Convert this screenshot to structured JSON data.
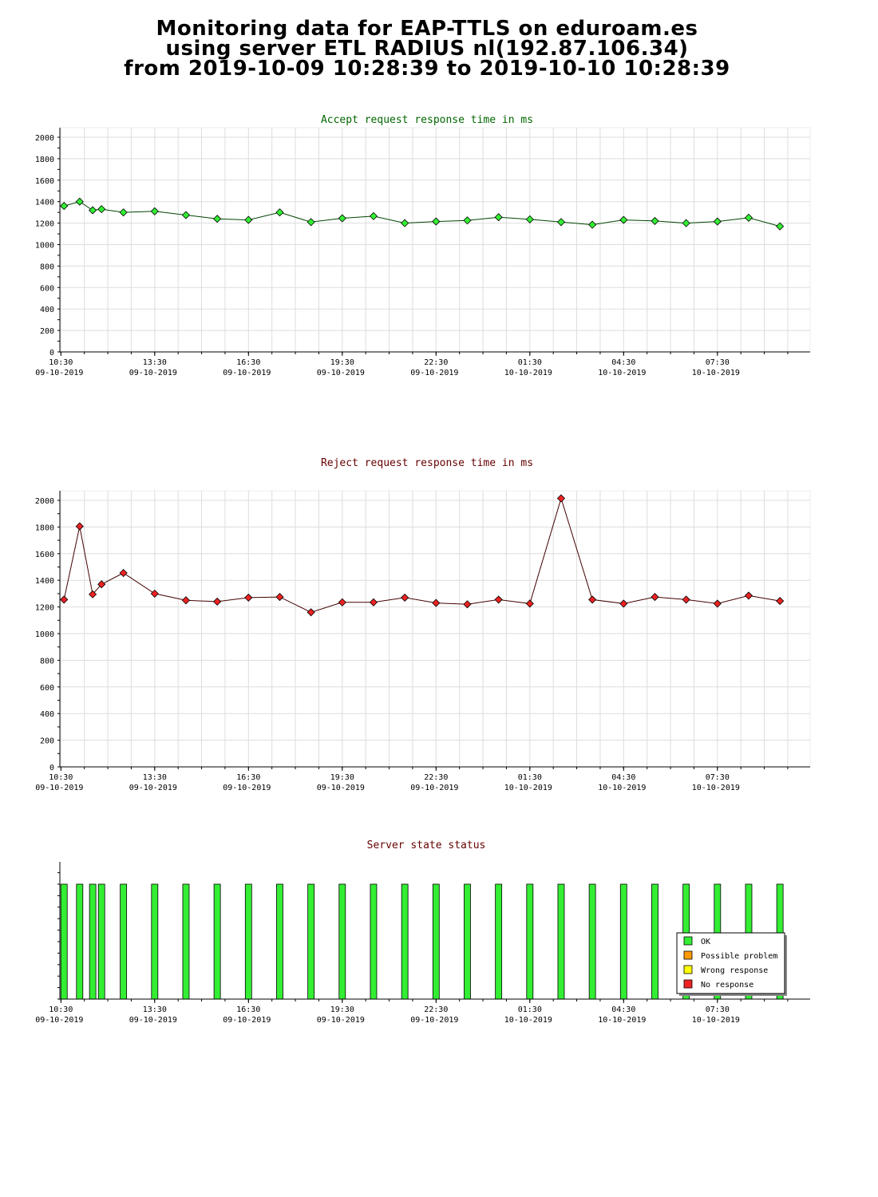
{
  "title": {
    "line1": "Monitoring data for EAP-TTLS on eduroam.es",
    "line2": "using server ETL RADIUS nl(192.87.106.34)",
    "line3": "from 2019-10-09 10:28:39 to 2019-10-10 10:28:39"
  },
  "colors": {
    "accept_title": "#006600",
    "reject_title": "#660000",
    "status_title": "#660000",
    "accept_marker": "#33ee33",
    "reject_marker": "#ee2222",
    "grid": "#dddddd"
  },
  "x_ticks": [
    {
      "time": "10:30",
      "date": "09-10-2019"
    },
    {
      "time": "13:30",
      "date": "09-10-2019"
    },
    {
      "time": "16:30",
      "date": "09-10-2019"
    },
    {
      "time": "19:30",
      "date": "09-10-2019"
    },
    {
      "time": "22:30",
      "date": "09-10-2019"
    },
    {
      "time": "01:30",
      "date": "10-10-2019"
    },
    {
      "time": "04:30",
      "date": "10-10-2019"
    },
    {
      "time": "07:30",
      "date": "10-10-2019"
    }
  ],
  "chart_data": [
    {
      "type": "line",
      "title": "Accept request response time in ms",
      "ylim": [
        0,
        2000
      ],
      "yticks": [
        0,
        200,
        400,
        600,
        800,
        1000,
        1200,
        1400,
        1600,
        1800,
        2000
      ],
      "x": [
        "10:36",
        "11:06",
        "11:31",
        "11:48",
        "12:30",
        "13:30",
        "14:30",
        "15:30",
        "16:30",
        "17:30",
        "18:30",
        "19:30",
        "20:30",
        "21:30",
        "22:30",
        "23:30",
        "00:30",
        "01:30",
        "02:30",
        "03:30",
        "04:30",
        "05:30",
        "06:30",
        "07:30",
        "08:30",
        "09:30"
      ],
      "values": [
        1360,
        1400,
        1320,
        1330,
        1300,
        1310,
        1275,
        1240,
        1230,
        1300,
        1210,
        1245,
        1265,
        1200,
        1215,
        1225,
        1255,
        1235,
        1210,
        1185,
        1230,
        1220,
        1200,
        1215,
        1250,
        1170
      ]
    },
    {
      "type": "line",
      "title": "Reject request response time in ms",
      "ylim": [
        0,
        2000
      ],
      "yticks": [
        0,
        200,
        400,
        600,
        800,
        1000,
        1200,
        1400,
        1600,
        1800,
        2000
      ],
      "x": [
        "10:36",
        "11:06",
        "11:31",
        "11:48",
        "12:30",
        "13:30",
        "14:30",
        "15:30",
        "16:30",
        "17:30",
        "18:30",
        "19:30",
        "20:30",
        "21:30",
        "22:30",
        "23:30",
        "00:30",
        "01:30",
        "02:30",
        "03:30",
        "04:30",
        "05:30",
        "06:30",
        "07:30",
        "08:30",
        "09:30"
      ],
      "values": [
        1255,
        1805,
        1295,
        1370,
        1455,
        1300,
        1250,
        1240,
        1270,
        1275,
        1160,
        1235,
        1235,
        1270,
        1230,
        1220,
        1255,
        1225,
        2015,
        1255,
        1225,
        1275,
        1255,
        1225,
        1285,
        1245
      ]
    },
    {
      "type": "bar",
      "title": "Server state status",
      "x": [
        "10:36",
        "11:06",
        "11:31",
        "11:48",
        "12:30",
        "13:30",
        "14:30",
        "15:30",
        "16:30",
        "17:30",
        "18:30",
        "19:30",
        "20:30",
        "21:30",
        "22:30",
        "23:30",
        "00:30",
        "01:30",
        "02:30",
        "03:30",
        "04:30",
        "05:30",
        "06:30",
        "07:30",
        "08:30",
        "09:30"
      ],
      "states": [
        "OK",
        "OK",
        "OK",
        "OK",
        "OK",
        "OK",
        "OK",
        "OK",
        "OK",
        "OK",
        "OK",
        "OK",
        "OK",
        "OK",
        "OK",
        "OK",
        "OK",
        "OK",
        "OK",
        "OK",
        "OK",
        "OK",
        "OK",
        "OK",
        "OK",
        "OK"
      ],
      "legend": [
        {
          "label": "OK",
          "color": "#33ee33"
        },
        {
          "label": "Possible problem",
          "color": "#ff9900"
        },
        {
          "label": "Wrong response",
          "color": "#ffff00"
        },
        {
          "label": "No response",
          "color": "#ee2222"
        }
      ],
      "legend_position": "bottom-right"
    }
  ]
}
